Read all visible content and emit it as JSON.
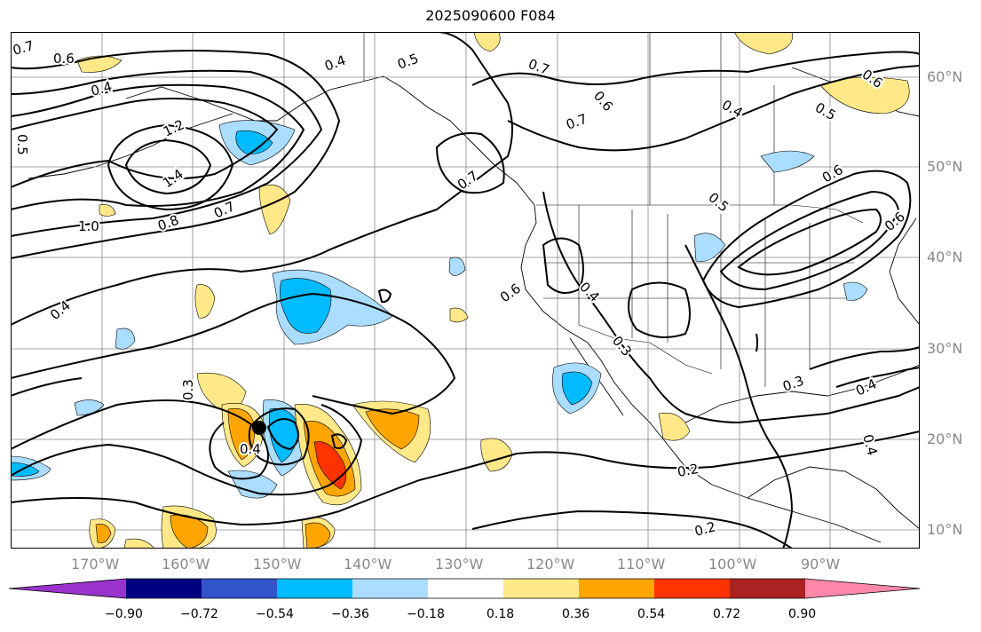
{
  "title": "2025090600 F084",
  "lon_labels": [
    "170°W",
    "160°W",
    "150°W",
    "140°W",
    "130°W",
    "120°W",
    "110°W",
    "100°W",
    "90°W"
  ],
  "lat_labels": [
    "60°N",
    "50°N",
    "40°N",
    "30°N",
    "20°N",
    "10°N"
  ],
  "colorbar": {
    "labels": [
      "−0.90",
      "−0.72",
      "−0.54",
      "−0.36",
      "−0.18",
      "0.18",
      "0.36",
      "0.54",
      "0.72",
      "0.90"
    ],
    "colors": [
      "#9933cc",
      "#000080",
      "#3355cc",
      "#00bbff",
      "#aaddff",
      "#ffffff",
      "#ffe888",
      "#ffa500",
      "#ff3300",
      "#aa2222",
      "#ff88aa"
    ]
  },
  "contour_labels": [
    "0.7",
    "0.6",
    "0.4",
    "0.5",
    "0.7",
    "0.6",
    "0.7",
    "0.4",
    "0.6",
    "0.5",
    "1.2",
    "1.4",
    "1.0",
    "0.8",
    "0.7",
    "0.7",
    "0.5",
    "0.6",
    "0.4",
    "0.4",
    "0.6",
    "0.3",
    "0.3",
    "0.3",
    "0.4",
    "0.4",
    "0.2",
    "0.2",
    "0.5",
    "0.4",
    "0.4",
    "0.6"
  ]
}
